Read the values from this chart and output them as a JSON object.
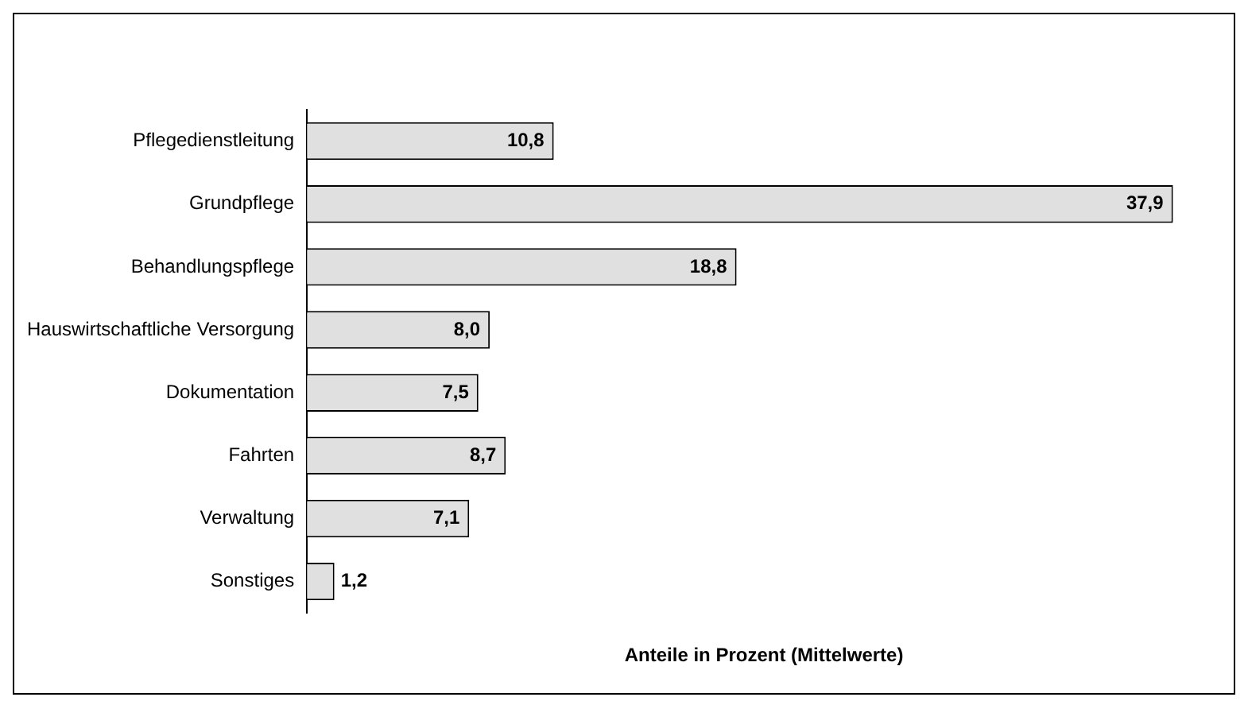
{
  "chart_data": {
    "type": "bar",
    "orientation": "horizontal",
    "categories": [
      "Pflegedienstleitung",
      "Grundpflege",
      "Behandlungspflege",
      "Hauswirtschaftliche Versorgung",
      "Dokumentation",
      "Fahrten",
      "Verwaltung",
      "Sonstiges"
    ],
    "values": [
      10.8,
      37.9,
      18.8,
      8.0,
      7.5,
      8.7,
      7.1,
      1.2
    ],
    "value_labels": [
      "10,8",
      "37,9",
      "18,8",
      "8,0",
      "7,5",
      "8,7",
      "7,1",
      "1,2"
    ],
    "color": "#e0e0e0",
    "xlabel": "Anteile in Prozent (Mittelwerte)",
    "grid": false,
    "legend": false,
    "tick_labels": "y"
  }
}
